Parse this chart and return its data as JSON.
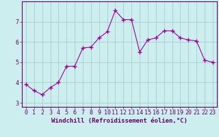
{
  "x": [
    0,
    1,
    2,
    3,
    4,
    5,
    6,
    7,
    8,
    9,
    10,
    11,
    12,
    13,
    14,
    15,
    16,
    17,
    18,
    19,
    20,
    21,
    22,
    23
  ],
  "y": [
    3.9,
    3.6,
    3.4,
    3.75,
    4.0,
    4.8,
    4.8,
    5.7,
    5.75,
    6.2,
    6.5,
    7.55,
    7.1,
    7.1,
    5.5,
    6.1,
    6.2,
    6.55,
    6.55,
    6.2,
    6.1,
    6.05,
    5.1,
    5.0
  ],
  "line_color": "#990099",
  "marker": "+",
  "marker_color": "#990099",
  "bg_color": "#cceeee",
  "grid_color": "#aacccc",
  "xlabel": "Windchill (Refroidissement éolien,°C)",
  "ylim": [
    2.8,
    8.0
  ],
  "xlim": [
    -0.5,
    23.5
  ],
  "yticks": [
    3,
    4,
    5,
    6,
    7
  ],
  "xticks": [
    0,
    1,
    2,
    3,
    4,
    5,
    6,
    7,
    8,
    9,
    10,
    11,
    12,
    13,
    14,
    15,
    16,
    17,
    18,
    19,
    20,
    21,
    22,
    23
  ],
  "title_color": "#660066",
  "axis_color": "#660066",
  "label_fontsize": 6.5,
  "tick_fontsize": 6
}
